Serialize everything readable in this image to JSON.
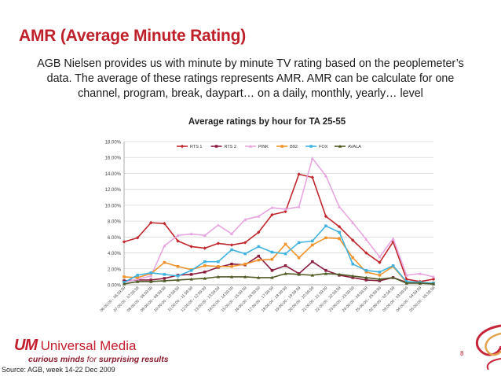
{
  "slide": {
    "title": "AMR (Average Minute Rating)",
    "intro_lines": [
      "AGB Nielsen provides us with minute by minute TV rating based on the peoplemeter’s",
      "data. The average of these ratings represents AMR. AMR can be calculate for one",
      "channel, program, break, daypart… on a daily, monthly, yearly… level"
    ],
    "logo_mark": "UM",
    "logo_name": "Universal Media",
    "tagline_prefix": "curious minds",
    "tagline_for": " for ",
    "tagline_suffix": "surprising results",
    "source": "Source: AGB, week 14-22 Dec 2009",
    "page_number": "8"
  },
  "chart_data": {
    "type": "line",
    "title": "Average ratings by hour for TA 25-55",
    "xlabel": "",
    "ylabel": "",
    "ylim": [
      0,
      18
    ],
    "yticks": [
      "0.00%",
      "2.00%",
      "4.00%",
      "6.00%",
      "8.00%",
      "10.00%",
      "12.00%",
      "14.00%",
      "16.00%",
      "18.00%"
    ],
    "grid": true,
    "legend_position": "top",
    "categories": [
      "06:00:00 - 06:59:59",
      "07:00:00 - 07:59:59",
      "08:00:00 - 08:59:59",
      "09:00:00 - 09:59:59",
      "10:00:00 - 10:59:59",
      "11:00:00 - 11:59:59",
      "12:00:00 - 12:59:59",
      "13:00:00 - 13:59:59",
      "14:00:00 - 14:59:59",
      "15:00:00 - 15:59:59",
      "16:00:00 - 16:59:59",
      "17:00:00 - 17:59:59",
      "18:00:00 - 18:59:59",
      "19:00:00 - 19:59:59",
      "20:00:00 - 20:59:59",
      "21:00:00 - 21:59:59",
      "22:00:00 - 22:59:59",
      "23:00:00 - 23:59:59",
      "24:00:00 - 24:59:59",
      "25:00:00 - 25:59:59",
      "02:00:00 - 02:59:59",
      "03:00:00 - 03:59:59",
      "04:00:00 - 04:59:59",
      "05:00:00 - 05:59:59"
    ],
    "series": [
      {
        "name": "RTS 1",
        "color": "#c0272d",
        "marker": "diamond",
        "values": [
          5.4,
          5.9,
          7.8,
          7.7,
          5.5,
          4.8,
          4.6,
          5.2,
          5.0,
          5.3,
          6.6,
          8.8,
          9.2,
          13.9,
          13.5,
          8.6,
          7.3,
          5.6,
          4.0,
          2.8,
          5.4,
          0.7,
          0.4,
          0.7
        ]
      },
      {
        "name": "RTS 2",
        "color": "#8b1e3f",
        "marker": "square",
        "values": [
          0.5,
          0.6,
          0.6,
          0.8,
          1.2,
          1.3,
          1.6,
          2.2,
          2.6,
          2.5,
          3.6,
          1.8,
          2.4,
          1.4,
          2.9,
          1.8,
          1.2,
          0.9,
          0.6,
          0.5,
          0.9,
          0.3,
          0.2,
          0.2
        ]
      },
      {
        "name": "PINK",
        "color": "#e7a6e0",
        "marker": "triangle",
        "values": [
          0.3,
          0.7,
          1.1,
          4.9,
          6.2,
          6.4,
          6.2,
          7.5,
          6.4,
          8.2,
          8.6,
          9.7,
          9.5,
          9.8,
          15.9,
          13.7,
          9.8,
          7.8,
          5.7,
          3.5,
          5.8,
          1.2,
          1.4,
          1.0
        ]
      },
      {
        "name": "B92",
        "color": "#f0932b",
        "marker": "square",
        "values": [
          1.0,
          0.9,
          1.4,
          2.8,
          2.3,
          1.9,
          2.4,
          2.3,
          2.3,
          2.6,
          3.1,
          3.2,
          5.1,
          3.4,
          5.0,
          5.9,
          5.8,
          3.4,
          1.6,
          1.2,
          2.3,
          0.3,
          0.3,
          0.2
        ]
      },
      {
        "name": "FOX",
        "color": "#3fb3df",
        "marker": "square",
        "values": [
          0.3,
          1.2,
          1.5,
          1.3,
          1.1,
          1.8,
          2.9,
          2.9,
          4.4,
          3.9,
          4.8,
          4.1,
          3.9,
          5.3,
          5.5,
          7.4,
          6.6,
          2.6,
          1.8,
          1.6,
          2.4,
          0.4,
          0.3,
          0.2
        ]
      },
      {
        "name": "AVALA",
        "color": "#4f5a24",
        "marker": "triangle",
        "values": [
          0.1,
          0.4,
          0.4,
          0.5,
          0.6,
          0.7,
          0.8,
          1.0,
          1.0,
          1.0,
          0.9,
          0.9,
          1.4,
          1.3,
          1.2,
          1.4,
          1.3,
          1.1,
          0.9,
          0.7,
          0.9,
          0.2,
          0.2,
          0.1
        ]
      }
    ]
  }
}
